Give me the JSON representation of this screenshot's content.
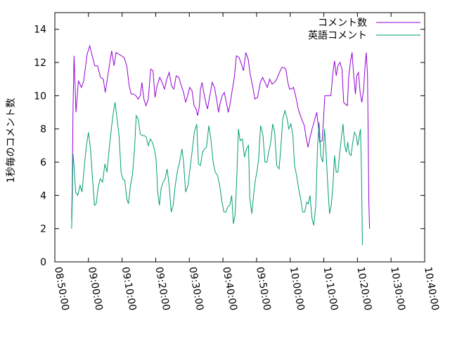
{
  "chart_data": {
    "type": "line",
    "ylabel": "1秒毎のコメント数",
    "ylim": [
      0,
      15
    ],
    "yticks": [
      0,
      2,
      4,
      6,
      8,
      10,
      12,
      14
    ],
    "xlim_minutes": [
      530,
      640
    ],
    "xticks": [
      {
        "minute": 530,
        "label": "08:50:00"
      },
      {
        "minute": 540,
        "label": "09:00:00"
      },
      {
        "minute": 550,
        "label": "09:10:00"
      },
      {
        "minute": 560,
        "label": "09:20:00"
      },
      {
        "minute": 570,
        "label": "09:30:00"
      },
      {
        "minute": 580,
        "label": "09:40:00"
      },
      {
        "minute": 590,
        "label": "09:50:00"
      },
      {
        "minute": 600,
        "label": "10:00:00"
      },
      {
        "minute": 610,
        "label": "10:10:00"
      },
      {
        "minute": 620,
        "label": "10:20:00"
      },
      {
        "minute": 630,
        "label": "10:30:00"
      },
      {
        "minute": 640,
        "label": "10:40:00"
      }
    ],
    "grid": false,
    "legend_position": "top-right",
    "series": [
      {
        "name": "コメント数",
        "color": "#9400d3",
        "points": [
          [
            535.0,
            2.5
          ],
          [
            535.2,
            5.0
          ],
          [
            535.4,
            9.0
          ],
          [
            535.7,
            12.4
          ],
          [
            536.3,
            9.0
          ],
          [
            537.0,
            10.9
          ],
          [
            537.9,
            10.5
          ],
          [
            538.6,
            10.9
          ],
          [
            539.6,
            12.5
          ],
          [
            540.4,
            13.0
          ],
          [
            541.1,
            12.4
          ],
          [
            541.9,
            11.8
          ],
          [
            542.7,
            11.8
          ],
          [
            543.6,
            11.1
          ],
          [
            544.4,
            11.0
          ],
          [
            545.0,
            10.2
          ],
          [
            545.6,
            11.0
          ],
          [
            546.2,
            11.8
          ],
          [
            546.9,
            12.7
          ],
          [
            547.6,
            11.8
          ],
          [
            548.2,
            12.6
          ],
          [
            549.0,
            12.5
          ],
          [
            549.8,
            12.4
          ],
          [
            550.6,
            12.3
          ],
          [
            551.4,
            11.8
          ],
          [
            552.1,
            10.6
          ],
          [
            552.7,
            10.1
          ],
          [
            553.4,
            10.1
          ],
          [
            554.1,
            10.0
          ],
          [
            554.8,
            9.8
          ],
          [
            555.4,
            10.0
          ],
          [
            555.9,
            10.8
          ],
          [
            556.5,
            9.8
          ],
          [
            557.1,
            9.4
          ],
          [
            557.8,
            9.8
          ],
          [
            558.5,
            11.6
          ],
          [
            559.2,
            11.5
          ],
          [
            559.8,
            9.9
          ],
          [
            560.4,
            10.6
          ],
          [
            561.2,
            11.1
          ],
          [
            561.9,
            10.8
          ],
          [
            562.6,
            10.4
          ],
          [
            563.3,
            11.0
          ],
          [
            564.0,
            11.4
          ],
          [
            564.7,
            10.6
          ],
          [
            565.4,
            10.4
          ],
          [
            566.1,
            11.2
          ],
          [
            566.9,
            11.1
          ],
          [
            567.6,
            10.6
          ],
          [
            568.3,
            10.2
          ],
          [
            568.9,
            9.6
          ],
          [
            569.5,
            10.0
          ],
          [
            570.1,
            10.5
          ],
          [
            570.8,
            10.3
          ],
          [
            571.4,
            9.4
          ],
          [
            572.0,
            9.2
          ],
          [
            572.5,
            8.8
          ],
          [
            573.0,
            9.4
          ],
          [
            573.3,
            10.4
          ],
          [
            573.8,
            10.8
          ],
          [
            574.3,
            10.2
          ],
          [
            574.9,
            9.6
          ],
          [
            575.4,
            9.2
          ],
          [
            576.0,
            9.9
          ],
          [
            576.8,
            10.8
          ],
          [
            577.5,
            10.5
          ],
          [
            578.1,
            9.8
          ],
          [
            578.7,
            9.0
          ],
          [
            579.2,
            9.6
          ],
          [
            579.8,
            10.0
          ],
          [
            580.4,
            10.2
          ],
          [
            581.0,
            9.6
          ],
          [
            581.6,
            9.0
          ],
          [
            582.2,
            9.6
          ],
          [
            582.8,
            10.4
          ],
          [
            583.4,
            11.1
          ],
          [
            584.0,
            12.4
          ],
          [
            584.8,
            12.3
          ],
          [
            585.5,
            11.9
          ],
          [
            586.1,
            11.5
          ],
          [
            586.8,
            12.6
          ],
          [
            587.5,
            12.2
          ],
          [
            588.1,
            11.3
          ],
          [
            588.8,
            10.6
          ],
          [
            589.5,
            9.8
          ],
          [
            590.3,
            9.9
          ],
          [
            591.1,
            10.8
          ],
          [
            591.8,
            11.1
          ],
          [
            592.5,
            10.8
          ],
          [
            593.2,
            10.5
          ],
          [
            593.9,
            11.0
          ],
          [
            594.6,
            10.7
          ],
          [
            595.3,
            10.8
          ],
          [
            596.0,
            11.0
          ],
          [
            596.8,
            11.4
          ],
          [
            597.5,
            11.7
          ],
          [
            598.1,
            11.7
          ],
          [
            598.7,
            11.6
          ],
          [
            599.3,
            10.8
          ],
          [
            599.8,
            10.4
          ],
          [
            600.3,
            10.4
          ],
          [
            601.0,
            10.5
          ],
          [
            601.7,
            9.9
          ],
          [
            602.4,
            9.2
          ],
          [
            603.0,
            8.8
          ],
          [
            603.6,
            8.5
          ],
          [
            604.2,
            8.2
          ],
          [
            604.8,
            7.4
          ],
          [
            605.3,
            6.9
          ],
          [
            605.8,
            7.4
          ],
          [
            606.5,
            8.0
          ],
          [
            607.2,
            8.5
          ],
          [
            607.9,
            9.0
          ],
          [
            608.3,
            8.3
          ],
          [
            608.8,
            7.2
          ],
          [
            609.5,
            7.3
          ],
          [
            609.9,
            8.6
          ],
          [
            610.3,
            10.0
          ],
          [
            610.8,
            10.0
          ],
          [
            611.5,
            10.0
          ],
          [
            612.1,
            10.0
          ],
          [
            612.7,
            11.4
          ],
          [
            613.2,
            12.1
          ],
          [
            613.7,
            11.2
          ],
          [
            614.2,
            11.8
          ],
          [
            614.8,
            12.0
          ],
          [
            615.4,
            11.6
          ],
          [
            615.9,
            9.6
          ],
          [
            616.4,
            9.5
          ],
          [
            617.0,
            9.4
          ],
          [
            617.4,
            11.1
          ],
          [
            617.9,
            12.0
          ],
          [
            618.4,
            12.6
          ],
          [
            618.9,
            11.2
          ],
          [
            619.4,
            10.1
          ],
          [
            619.8,
            11.2
          ],
          [
            620.3,
            11.4
          ],
          [
            620.8,
            10.2
          ],
          [
            621.3,
            9.6
          ],
          [
            621.8,
            10.3
          ],
          [
            622.2,
            11.6
          ],
          [
            622.6,
            12.6
          ],
          [
            623.0,
            11.3
          ],
          [
            623.4,
            3.6
          ],
          [
            623.6,
            2.0
          ]
        ]
      },
      {
        "name": "英語コメント",
        "color": "#009e73",
        "points": [
          [
            535.0,
            2.0
          ],
          [
            535.2,
            4.0
          ],
          [
            535.4,
            6.5
          ],
          [
            535.7,
            5.8
          ],
          [
            536.2,
            4.2
          ],
          [
            536.8,
            4.0
          ],
          [
            537.5,
            4.6
          ],
          [
            538.1,
            4.2
          ],
          [
            538.7,
            5.6
          ],
          [
            539.4,
            7.0
          ],
          [
            540.0,
            7.8
          ],
          [
            540.6,
            6.8
          ],
          [
            541.2,
            5.0
          ],
          [
            541.8,
            3.4
          ],
          [
            542.3,
            3.5
          ],
          [
            542.9,
            4.5
          ],
          [
            543.5,
            5.0
          ],
          [
            544.2,
            4.8
          ],
          [
            544.9,
            5.9
          ],
          [
            545.5,
            5.4
          ],
          [
            546.2,
            6.9
          ],
          [
            546.8,
            8.0
          ],
          [
            547.4,
            9.0
          ],
          [
            547.9,
            9.6
          ],
          [
            548.5,
            8.6
          ],
          [
            549.1,
            7.6
          ],
          [
            549.7,
            5.4
          ],
          [
            550.2,
            5.0
          ],
          [
            550.8,
            4.9
          ],
          [
            551.4,
            3.8
          ],
          [
            551.9,
            3.5
          ],
          [
            552.5,
            4.6
          ],
          [
            553.1,
            5.3
          ],
          [
            553.7,
            6.8
          ],
          [
            554.2,
            8.8
          ],
          [
            554.8,
            8.6
          ],
          [
            555.4,
            7.7
          ],
          [
            556.0,
            7.6
          ],
          [
            556.6,
            7.6
          ],
          [
            557.2,
            7.5
          ],
          [
            557.8,
            7.0
          ],
          [
            558.4,
            7.4
          ],
          [
            559.0,
            7.2
          ],
          [
            559.6,
            6.8
          ],
          [
            560.1,
            6.2
          ],
          [
            560.6,
            4.2
          ],
          [
            561.1,
            3.4
          ],
          [
            561.6,
            4.4
          ],
          [
            562.2,
            4.8
          ],
          [
            562.8,
            5.0
          ],
          [
            563.4,
            5.6
          ],
          [
            564.0,
            4.6
          ],
          [
            564.6,
            3.0
          ],
          [
            565.2,
            3.4
          ],
          [
            565.8,
            4.6
          ],
          [
            566.5,
            5.5
          ],
          [
            567.1,
            6.0
          ],
          [
            567.8,
            6.8
          ],
          [
            568.3,
            6.0
          ],
          [
            568.9,
            4.2
          ],
          [
            569.6,
            4.6
          ],
          [
            570.2,
            5.6
          ],
          [
            570.8,
            6.6
          ],
          [
            571.5,
            7.8
          ],
          [
            572.2,
            8.3
          ],
          [
            572.7,
            5.9
          ],
          [
            573.3,
            5.8
          ],
          [
            573.9,
            6.6
          ],
          [
            574.5,
            6.8
          ],
          [
            575.1,
            6.9
          ],
          [
            575.8,
            8.2
          ],
          [
            576.4,
            7.4
          ],
          [
            577.1,
            6.0
          ],
          [
            577.7,
            5.4
          ],
          [
            578.4,
            5.2
          ],
          [
            579.1,
            4.5
          ],
          [
            579.7,
            3.6
          ],
          [
            580.3,
            3.0
          ],
          [
            580.9,
            3.0
          ],
          [
            581.4,
            3.3
          ],
          [
            582.0,
            3.4
          ],
          [
            582.6,
            4.0
          ],
          [
            583.1,
            2.3
          ],
          [
            583.6,
            2.8
          ],
          [
            584.1,
            5.0
          ],
          [
            584.6,
            8.0
          ],
          [
            585.1,
            7.3
          ],
          [
            585.8,
            7.4
          ],
          [
            586.4,
            6.3
          ],
          [
            587.0,
            6.8
          ],
          [
            587.6,
            7.0
          ],
          [
            588.0,
            3.8
          ],
          [
            588.6,
            2.9
          ],
          [
            589.2,
            4.2
          ],
          [
            589.7,
            5.0
          ],
          [
            590.1,
            5.4
          ],
          [
            590.6,
            6.2
          ],
          [
            591.2,
            8.2
          ],
          [
            591.9,
            7.6
          ],
          [
            592.5,
            6.0
          ],
          [
            593.1,
            6.0
          ],
          [
            593.6,
            6.6
          ],
          [
            594.2,
            7.2
          ],
          [
            594.8,
            8.3
          ],
          [
            595.4,
            7.8
          ],
          [
            596.0,
            5.8
          ],
          [
            596.7,
            5.6
          ],
          [
            597.2,
            6.8
          ],
          [
            597.8,
            8.6
          ],
          [
            598.4,
            9.1
          ],
          [
            599.0,
            8.7
          ],
          [
            599.6,
            8.0
          ],
          [
            600.2,
            8.3
          ],
          [
            600.8,
            7.6
          ],
          [
            601.3,
            5.8
          ],
          [
            601.9,
            5.2
          ],
          [
            602.5,
            4.4
          ],
          [
            603.1,
            3.8
          ],
          [
            603.7,
            3.0
          ],
          [
            604.3,
            3.0
          ],
          [
            604.9,
            3.6
          ],
          [
            605.4,
            3.5
          ],
          [
            605.9,
            4.0
          ],
          [
            606.5,
            2.6
          ],
          [
            607.0,
            2.2
          ],
          [
            607.6,
            3.4
          ],
          [
            608.1,
            6.8
          ],
          [
            608.6,
            8.4
          ],
          [
            609.1,
            6.4
          ],
          [
            609.7,
            6.0
          ],
          [
            610.2,
            8.0
          ],
          [
            610.7,
            6.5
          ],
          [
            611.2,
            4.5
          ],
          [
            611.7,
            2.9
          ],
          [
            612.2,
            3.4
          ],
          [
            612.7,
            4.6
          ],
          [
            613.2,
            6.4
          ],
          [
            613.7,
            5.4
          ],
          [
            614.2,
            5.4
          ],
          [
            614.7,
            6.5
          ],
          [
            615.2,
            7.4
          ],
          [
            615.7,
            8.3
          ],
          [
            616.2,
            7.0
          ],
          [
            616.7,
            6.6
          ],
          [
            617.1,
            7.2
          ],
          [
            617.6,
            6.5
          ],
          [
            618.1,
            6.4
          ],
          [
            618.6,
            7.2
          ],
          [
            619.1,
            7.8
          ],
          [
            619.6,
            7.6
          ],
          [
            620.1,
            7.0
          ],
          [
            620.5,
            7.5
          ],
          [
            620.9,
            8.0
          ],
          [
            621.2,
            5.4
          ],
          [
            621.5,
            1.0
          ]
        ]
      }
    ]
  }
}
